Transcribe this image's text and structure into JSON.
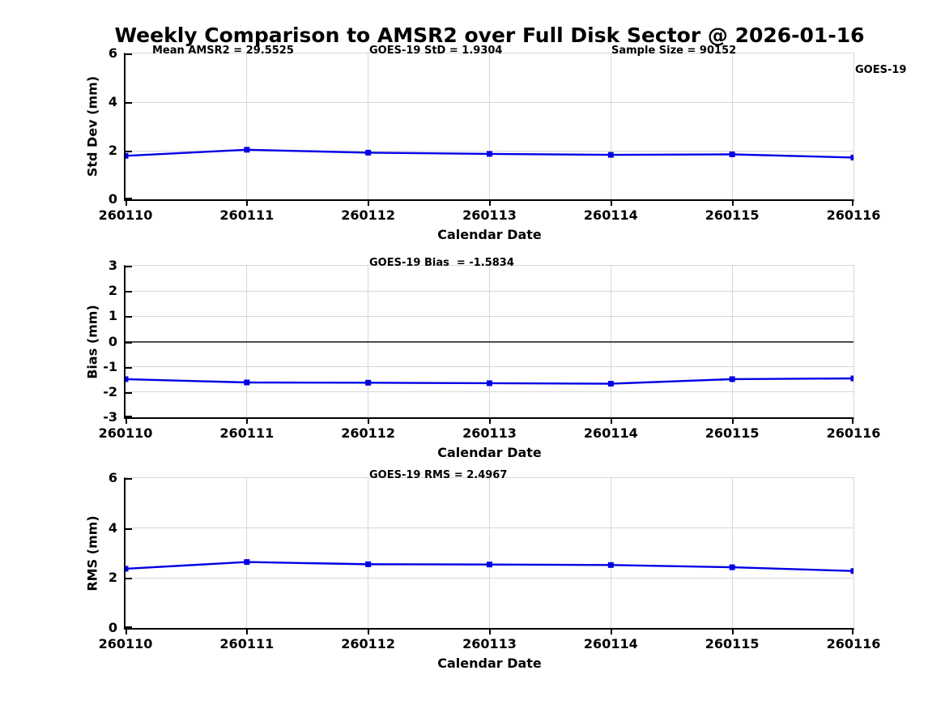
{
  "title": "Weekly Comparison to AMSR2 over Full Disk Sector @ 2026-01-16",
  "legend": {
    "label": "GOES-19"
  },
  "colors": {
    "line": "#0000e6",
    "grid": "#d7d7d7",
    "zero_line": "#4d4d4d",
    "axis": "#000000"
  },
  "chart_data": [
    {
      "type": "line",
      "ylabel": "Std Dev (mm)",
      "xlabel": "Calendar Date",
      "ylim": [
        0,
        6
      ],
      "yticks": [
        0,
        2,
        4,
        6
      ],
      "grid": true,
      "legend_position": "top-right-outside",
      "x": [
        "260110",
        "260111",
        "260112",
        "260113",
        "260114",
        "260115",
        "260116"
      ],
      "series": [
        {
          "name": "GOES-19",
          "values": [
            1.79,
            2.04,
            1.92,
            1.87,
            1.83,
            1.85,
            1.72
          ]
        }
      ],
      "annotations": [
        "Mean AMSR2 = 29.5525",
        "GOES-19 StD = 1.9304",
        "Sample Size = 90152"
      ]
    },
    {
      "type": "line",
      "ylabel": "Bias (mm)",
      "xlabel": "Calendar Date",
      "ylim": [
        -3,
        3
      ],
      "yticks": [
        -3,
        -2,
        -1,
        0,
        1,
        2,
        3
      ],
      "grid": true,
      "zero_line": true,
      "x": [
        "260110",
        "260111",
        "260112",
        "260113",
        "260114",
        "260115",
        "260116"
      ],
      "series": [
        {
          "name": "GOES-19",
          "values": [
            -1.49,
            -1.62,
            -1.63,
            -1.65,
            -1.67,
            -1.49,
            -1.46
          ]
        }
      ],
      "annotations": [
        "GOES-19 Bias  = -1.5834"
      ]
    },
    {
      "type": "line",
      "ylabel": "RMS (mm)",
      "xlabel": "Calendar Date",
      "ylim": [
        0,
        6
      ],
      "yticks": [
        0,
        2,
        4,
        6
      ],
      "grid": true,
      "x": [
        "260110",
        "260111",
        "260112",
        "260113",
        "260114",
        "260115",
        "260116"
      ],
      "series": [
        {
          "name": "GOES-19",
          "values": [
            2.37,
            2.64,
            2.55,
            2.54,
            2.52,
            2.43,
            2.28
          ]
        }
      ],
      "annotations": [
        "GOES-19 RMS = 2.4967"
      ]
    }
  ]
}
